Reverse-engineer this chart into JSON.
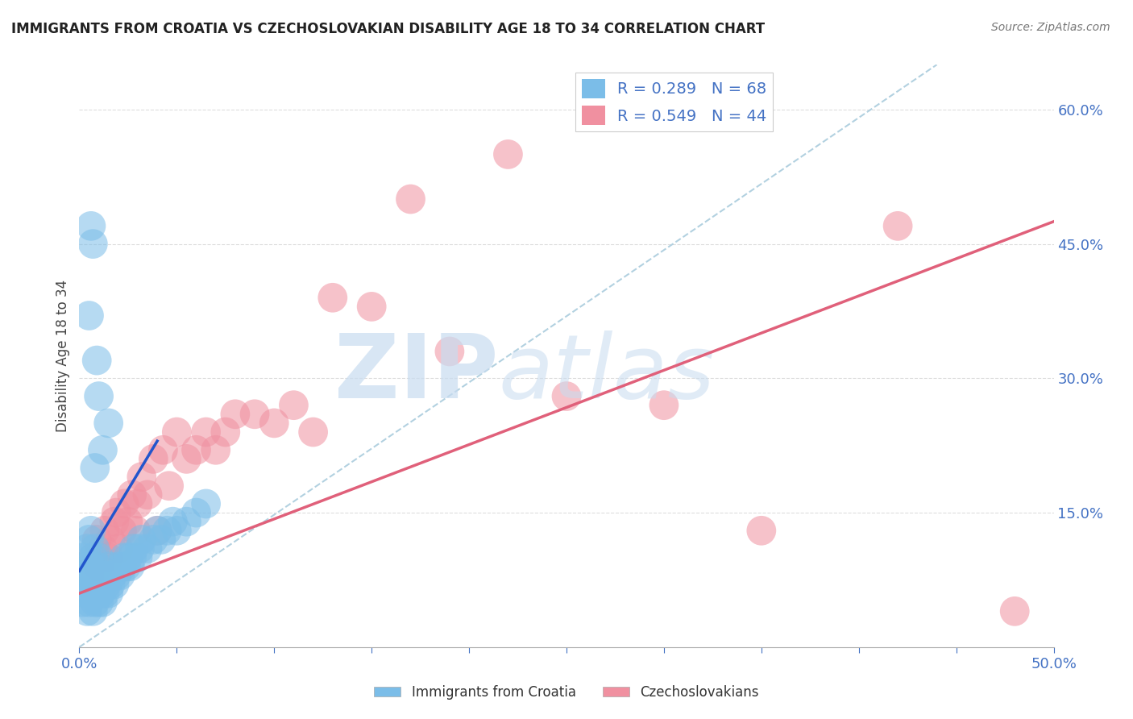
{
  "title": "IMMIGRANTS FROM CROATIA VS CZECHOSLOVAKIAN DISABILITY AGE 18 TO 34 CORRELATION CHART",
  "source": "Source: ZipAtlas.com",
  "ylabel": "Disability Age 18 to 34",
  "xlim": [
    0.0,
    0.5
  ],
  "ylim": [
    0.0,
    0.65
  ],
  "xticks": [
    0.0,
    0.05,
    0.1,
    0.15,
    0.2,
    0.25,
    0.3,
    0.35,
    0.4,
    0.45,
    0.5
  ],
  "yticks": [
    0.0,
    0.15,
    0.3,
    0.45,
    0.6
  ],
  "legend_entry1": "R = 0.289   N = 68",
  "legend_entry2": "R = 0.549   N = 44",
  "legend_label1": "Immigrants from Croatia",
  "legend_label2": "Czechoslovakians",
  "croatia_color": "#7BBDE8",
  "czech_color": "#F090A0",
  "croatia_trend_color": "#2255CC",
  "czech_trend_color": "#E0607A",
  "diag_color": "#AACCDD",
  "background_color": "#ffffff",
  "grid_color": "#dddddd",
  "title_color": "#222222",
  "tick_label_color": "#4472C4",
  "ylabel_color": "#444444",
  "watermark_zip_color": "#C8DCF0",
  "watermark_atlas_color": "#C8DCF0",
  "croatia_x": [
    0.001,
    0.002,
    0.002,
    0.003,
    0.003,
    0.004,
    0.004,
    0.004,
    0.005,
    0.005,
    0.005,
    0.006,
    0.006,
    0.006,
    0.007,
    0.007,
    0.007,
    0.008,
    0.008,
    0.008,
    0.009,
    0.009,
    0.01,
    0.01,
    0.01,
    0.011,
    0.011,
    0.012,
    0.012,
    0.013,
    0.013,
    0.014,
    0.015,
    0.015,
    0.016,
    0.017,
    0.018,
    0.019,
    0.02,
    0.021,
    0.022,
    0.023,
    0.024,
    0.025,
    0.026,
    0.027,
    0.028,
    0.03,
    0.031,
    0.032,
    0.035,
    0.038,
    0.04,
    0.042,
    0.045,
    0.048,
    0.05,
    0.055,
    0.06,
    0.065,
    0.008,
    0.012,
    0.015,
    0.005,
    0.009,
    0.01,
    0.007,
    0.006
  ],
  "croatia_y": [
    0.08,
    0.05,
    0.1,
    0.06,
    0.09,
    0.04,
    0.07,
    0.11,
    0.05,
    0.08,
    0.12,
    0.06,
    0.09,
    0.13,
    0.04,
    0.07,
    0.1,
    0.05,
    0.08,
    0.11,
    0.06,
    0.09,
    0.05,
    0.07,
    0.1,
    0.06,
    0.08,
    0.05,
    0.07,
    0.06,
    0.08,
    0.07,
    0.06,
    0.09,
    0.07,
    0.08,
    0.07,
    0.08,
    0.09,
    0.08,
    0.09,
    0.1,
    0.09,
    0.1,
    0.09,
    0.1,
    0.11,
    0.1,
    0.11,
    0.12,
    0.11,
    0.12,
    0.13,
    0.12,
    0.13,
    0.14,
    0.13,
    0.14,
    0.15,
    0.16,
    0.2,
    0.22,
    0.25,
    0.37,
    0.32,
    0.28,
    0.45,
    0.47
  ],
  "czech_x": [
    0.005,
    0.007,
    0.009,
    0.01,
    0.012,
    0.013,
    0.015,
    0.016,
    0.018,
    0.019,
    0.02,
    0.022,
    0.023,
    0.025,
    0.027,
    0.029,
    0.03,
    0.032,
    0.035,
    0.038,
    0.04,
    0.043,
    0.046,
    0.05,
    0.055,
    0.06,
    0.065,
    0.07,
    0.075,
    0.08,
    0.09,
    0.1,
    0.11,
    0.12,
    0.13,
    0.15,
    0.17,
    0.19,
    0.22,
    0.25,
    0.3,
    0.35,
    0.42,
    0.48
  ],
  "czech_y": [
    0.08,
    0.1,
    0.12,
    0.09,
    0.11,
    0.13,
    0.1,
    0.12,
    0.14,
    0.15,
    0.11,
    0.13,
    0.16,
    0.14,
    0.17,
    0.13,
    0.16,
    0.19,
    0.17,
    0.21,
    0.13,
    0.22,
    0.18,
    0.24,
    0.21,
    0.22,
    0.24,
    0.22,
    0.24,
    0.26,
    0.26,
    0.25,
    0.27,
    0.24,
    0.39,
    0.38,
    0.5,
    0.33,
    0.55,
    0.28,
    0.27,
    0.13,
    0.47,
    0.04
  ],
  "croatia_trend_x": [
    0.0,
    0.04
  ],
  "croatia_trend_y": [
    0.085,
    0.23
  ],
  "czech_trend_x": [
    0.0,
    0.5
  ],
  "czech_trend_y": [
    0.06,
    0.475
  ]
}
